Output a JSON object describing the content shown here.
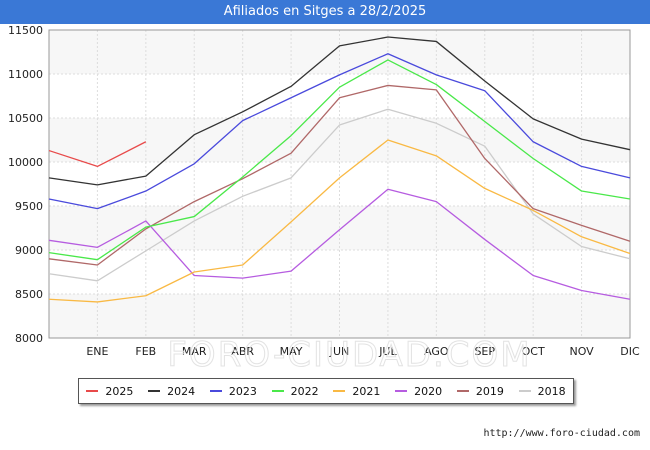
{
  "header": {
    "title": "Afiliados en Sitges a 28/2/2025"
  },
  "footer": {
    "source": "http://www.foro-ciudad.com"
  },
  "watermark": "FORO-CIUDAD.COM",
  "chart_data": {
    "type": "line",
    "title": "Afiliados en Sitges a 28/2/2025",
    "xlabel": "",
    "ylabel": "",
    "categories": [
      "",
      "ENE",
      "FEB",
      "MAR",
      "ABR",
      "MAY",
      "JUN",
      "JUL",
      "AGO",
      "SEP",
      "OCT",
      "NOV",
      "DIC"
    ],
    "ylim": [
      8000,
      11500
    ],
    "yticks": [
      8000,
      8500,
      9000,
      9500,
      10000,
      10500,
      11000,
      11500
    ],
    "grid": true,
    "legend_position": "bottom",
    "series": [
      {
        "name": "2025",
        "color": "#e84a4a",
        "values": [
          10130,
          9950,
          10230,
          null,
          null,
          null,
          null,
          null,
          null,
          null,
          null,
          null,
          null
        ]
      },
      {
        "name": "2024",
        "color": "#333333",
        "values": [
          9820,
          9740,
          9840,
          10310,
          10570,
          10860,
          11320,
          11420,
          11370,
          10920,
          10490,
          10260,
          10140
        ]
      },
      {
        "name": "2023",
        "color": "#4a4adc",
        "values": [
          9580,
          9470,
          9670,
          9980,
          10470,
          10730,
          10990,
          11230,
          10990,
          10810,
          10230,
          9950,
          9820
        ]
      },
      {
        "name": "2022",
        "color": "#4ae84a",
        "values": [
          8970,
          8890,
          9260,
          9380,
          9830,
          10300,
          10850,
          11160,
          10880,
          10460,
          10040,
          9670,
          9580
        ]
      },
      {
        "name": "2021",
        "color": "#f9b944",
        "values": [
          8440,
          8410,
          8480,
          8750,
          8830,
          9320,
          9820,
          10250,
          10070,
          9700,
          9450,
          9150,
          8960
        ]
      },
      {
        "name": "2020",
        "color": "#b65ce0",
        "values": [
          9110,
          9030,
          9330,
          8710,
          8680,
          8760,
          9230,
          9690,
          9550,
          9120,
          8710,
          8540,
          8440
        ]
      },
      {
        "name": "2019",
        "color": "#b06868",
        "values": [
          8900,
          8830,
          9240,
          9550,
          9810,
          10100,
          10730,
          10870,
          10820,
          10040,
          9470,
          9280,
          9100
        ]
      },
      {
        "name": "2018",
        "color": "#cccccc",
        "values": [
          8730,
          8650,
          8990,
          9330,
          9610,
          9820,
          10420,
          10600,
          10440,
          10180,
          9410,
          9040,
          8900
        ]
      }
    ]
  }
}
